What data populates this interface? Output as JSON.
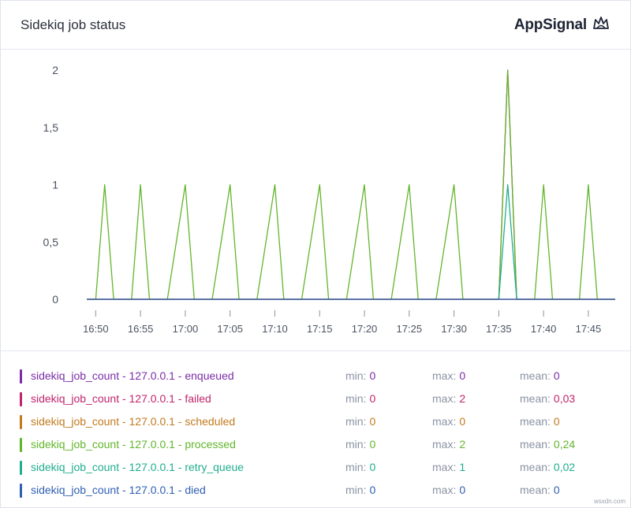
{
  "header": {
    "title": "Sidekiq job status",
    "brand": "AppSignal"
  },
  "chart_data": {
    "type": "line",
    "title": "Sidekiq job status",
    "xlabel": "",
    "ylabel": "",
    "ylim": [
      0,
      2
    ],
    "yticks": [
      "0",
      "0,5",
      "1",
      "1,5",
      "2"
    ],
    "xticks": [
      "16:50",
      "16:55",
      "17:00",
      "17:05",
      "17:10",
      "17:15",
      "17:20",
      "17:25",
      "17:30",
      "17:35",
      "17:40",
      "17:45"
    ],
    "x_range": [
      "16:49",
      "17:48"
    ],
    "grid": false,
    "series": [
      {
        "name": "sidekiq_job_count - 127.0.0.1 - enqueued",
        "color": "#7b2ca8",
        "x": [
          "16:49",
          "17:48"
        ],
        "values": [
          0,
          0
        ]
      },
      {
        "name": "sidekiq_job_count - 127.0.0.1 - failed",
        "color": "#c0246b",
        "x": [
          "16:49",
          "17:34",
          "17:35",
          "17:36",
          "17:37",
          "17:48"
        ],
        "values": [
          0,
          0,
          0,
          2,
          0,
          0
        ]
      },
      {
        "name": "sidekiq_job_count - 127.0.0.1 - scheduled",
        "color": "#c27a1e",
        "x": [
          "16:49",
          "17:48"
        ],
        "values": [
          0,
          0
        ]
      },
      {
        "name": "sidekiq_job_count - 127.0.0.1 - processed",
        "color": "#62b52b",
        "x": [
          "16:49",
          "16:50",
          "16:51",
          "16:52",
          "16:54",
          "16:55",
          "16:56",
          "16:58",
          "17:00",
          "17:01",
          "17:03",
          "17:05",
          "17:06",
          "17:08",
          "17:10",
          "17:11",
          "17:13",
          "17:15",
          "17:16",
          "17:18",
          "17:20",
          "17:21",
          "17:23",
          "17:25",
          "17:26",
          "17:28",
          "17:30",
          "17:31",
          "17:34",
          "17:35",
          "17:36",
          "17:37",
          "17:39",
          "17:40",
          "17:41",
          "17:44",
          "17:45",
          "17:46",
          "17:48"
        ],
        "values": [
          0,
          0,
          1,
          0,
          0,
          1,
          0,
          0,
          1,
          0,
          0,
          1,
          0,
          0,
          1,
          0,
          0,
          1,
          0,
          0,
          1,
          0,
          0,
          1,
          0,
          0,
          1,
          0,
          0,
          0,
          2,
          0,
          0,
          1,
          0,
          0,
          1,
          0,
          0
        ]
      },
      {
        "name": "sidekiq_job_count - 127.0.0.1 - retry_queue",
        "color": "#1fae8e",
        "x": [
          "16:49",
          "17:35",
          "17:36",
          "17:37",
          "17:48"
        ],
        "values": [
          0,
          0,
          1,
          0,
          0
        ]
      },
      {
        "name": "sidekiq_job_count - 127.0.0.1 - died",
        "color": "#2f5fb3",
        "x": [
          "16:49",
          "17:48"
        ],
        "values": [
          0,
          0
        ]
      }
    ]
  },
  "legend": [
    {
      "name": "sidekiq_job_count - 127.0.0.1 - enqueued",
      "color": "#7b2ca8",
      "min": "0",
      "max": "0",
      "mean": "0"
    },
    {
      "name": "sidekiq_job_count - 127.0.0.1 - failed",
      "color": "#c0246b",
      "min": "0",
      "max": "2",
      "mean": "0,03"
    },
    {
      "name": "sidekiq_job_count - 127.0.0.1 - scheduled",
      "color": "#c27a1e",
      "min": "0",
      "max": "0",
      "mean": "0"
    },
    {
      "name": "sidekiq_job_count - 127.0.0.1 - processed",
      "color": "#62b52b",
      "min": "0",
      "max": "2",
      "mean": "0,24"
    },
    {
      "name": "sidekiq_job_count - 127.0.0.1 - retry_queue",
      "color": "#1fae8e",
      "min": "0",
      "max": "1",
      "mean": "0,02"
    },
    {
      "name": "sidekiq_job_count - 127.0.0.1 - died",
      "color": "#2f5fb3",
      "min": "0",
      "max": "0",
      "mean": "0"
    }
  ],
  "stat_labels": {
    "min": "min:",
    "max": "max:",
    "mean": "mean:"
  },
  "watermark": "wsxdn.com"
}
